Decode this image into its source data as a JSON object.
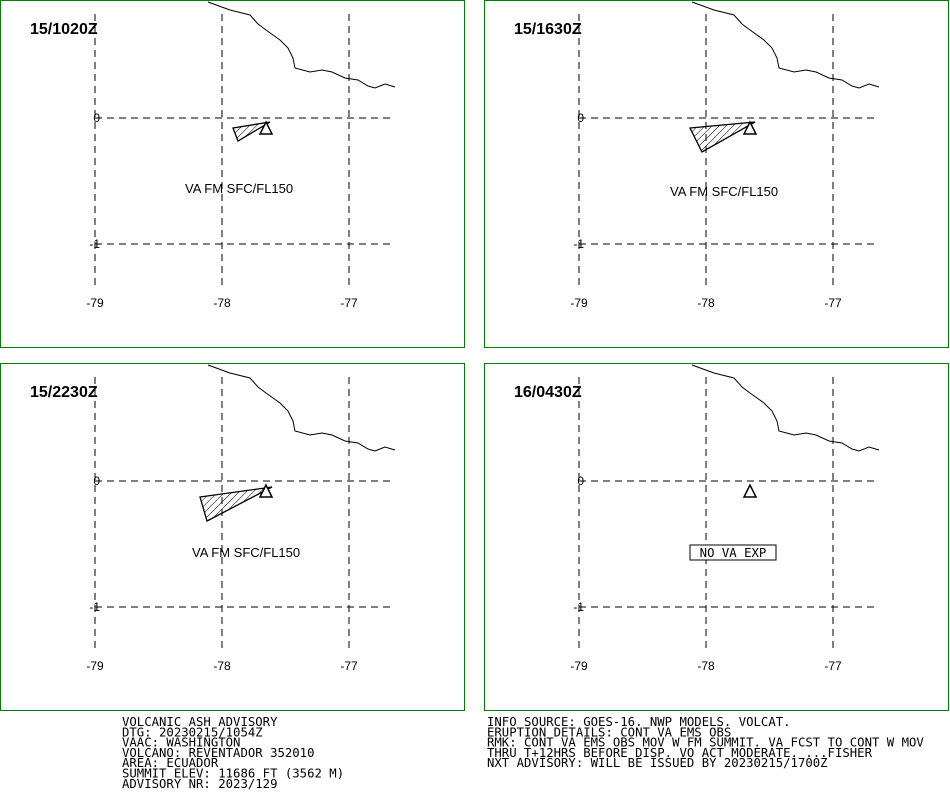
{
  "panels": [
    {
      "time": "15/1020Z",
      "label": "VA FM SFC/FL150",
      "lat_labels": [
        "0",
        "-1"
      ],
      "lon_labels": [
        "-79",
        "-78",
        "-77"
      ]
    },
    {
      "time": "15/1630Z",
      "label": "VA FM SFC/FL150",
      "lat_labels": [
        "0",
        "-1"
      ],
      "lon_labels": [
        "-79",
        "-78",
        "-77"
      ]
    },
    {
      "time": "15/2230Z",
      "label": "VA FM SFC/FL150",
      "lat_labels": [
        "0",
        "-1"
      ],
      "lon_labels": [
        "-79",
        "-78",
        "-77"
      ]
    },
    {
      "time": "16/0430Z",
      "label": "NO VA EXP",
      "lat_labels": [
        "0",
        "-1"
      ],
      "lon_labels": [
        "-79",
        "-78",
        "-77"
      ]
    }
  ],
  "advisory_left": [
    "VOLCANIC ASH ADVISORY",
    "DTG: 20230215/1054Z",
    "VAAC: WASHINGTON",
    "VOLCANO: REVENTADOR 352010",
    "AREA: ECUADOR",
    "SUMMIT ELEV: 11686 FT (3562 M)",
    "ADVISORY NR: 2023/129"
  ],
  "advisory_right": [
    "INFO SOURCE: GOES-16. NWP MODELS. VOLCAT.",
    "ERUPTION DETAILS: CONT VA EMS OBS",
    "RMK: CONT VA EMS OBS MOV W FM SUMMIT. VA FCST TO CONT W MOV",
    "THRU T+12HRS BEFORE DISP. VO ACT MODERATE. ...FISHER",
    "NXT ADVISORY: WILL BE ISSUED BY 20230215/1700Z"
  ]
}
